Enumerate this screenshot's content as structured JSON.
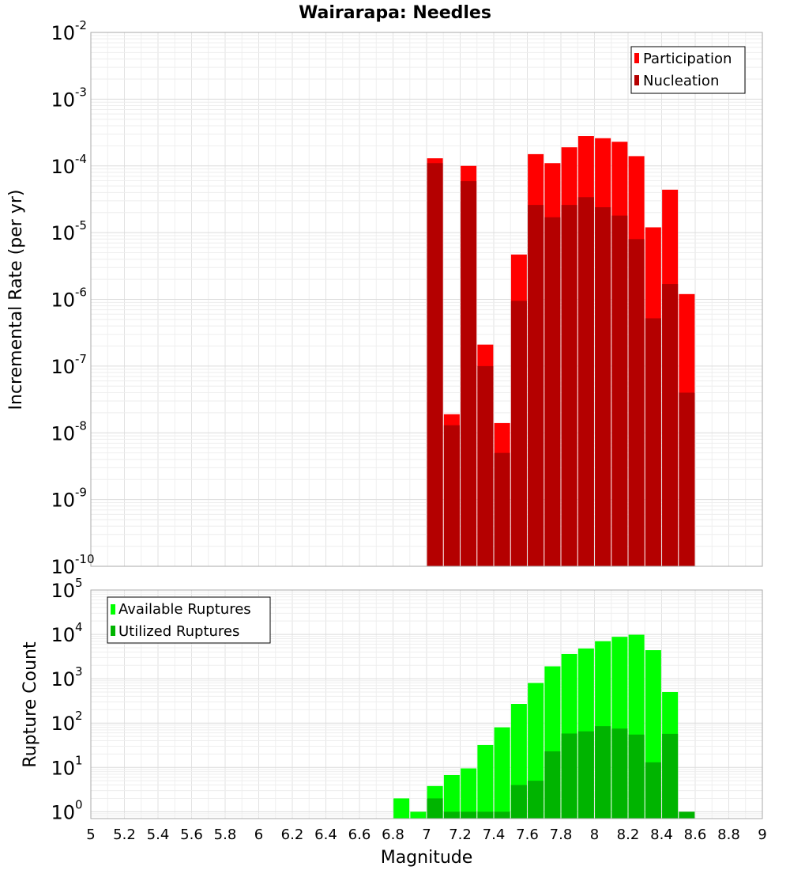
{
  "chart_data": [
    {
      "type": "bar",
      "panel": "top",
      "title": "Wairarapa: Needles",
      "ylabel": "Incremental Rate (per yr)",
      "yscale": "log",
      "ylim": [
        1e-10,
        0.01
      ],
      "y_ticks": [
        {
          "base": "10",
          "exp": "-10"
        },
        {
          "base": "10",
          "exp": "-9"
        },
        {
          "base": "10",
          "exp": "-8"
        },
        {
          "base": "10",
          "exp": "-7"
        },
        {
          "base": "10",
          "exp": "-6"
        },
        {
          "base": "10",
          "exp": "-5"
        },
        {
          "base": "10",
          "exp": "-4"
        },
        {
          "base": "10",
          "exp": "-3"
        },
        {
          "base": "10",
          "exp": "-2"
        }
      ],
      "x": [
        7.05,
        7.15,
        7.25,
        7.35,
        7.45,
        7.55,
        7.65,
        7.75,
        7.85,
        7.95,
        8.05,
        8.15,
        8.25,
        8.35,
        8.45,
        8.55
      ],
      "series": [
        {
          "name": "Participation",
          "color": "#ff0000",
          "values": [
            0.00013,
            1.9e-08,
            0.0001,
            2.1e-07,
            1.4e-08,
            4.7e-06,
            0.00015,
            0.00011,
            0.00019,
            0.00028,
            0.00026,
            0.00023,
            0.00014,
            1.2e-05,
            4.4e-05,
            1.2e-06
          ]
        },
        {
          "name": "Nucleation",
          "color": "#b40000",
          "values": [
            0.00011,
            1.3e-08,
            5.9e-05,
            1e-07,
            5e-09,
            9.5e-07,
            2.6e-05,
            1.7e-05,
            2.6e-05,
            3.4e-05,
            2.4e-05,
            1.8e-05,
            8e-06,
            5.2e-07,
            1.7e-06,
            4e-08
          ]
        }
      ],
      "legend": "top-right",
      "grid": true
    },
    {
      "type": "bar",
      "panel": "bottom",
      "xlabel": "Magnitude",
      "ylabel": "Rupture Count",
      "yscale": "log",
      "ylim": [
        0.7,
        100000.0
      ],
      "y_ticks": [
        {
          "base": "10",
          "exp": "0"
        },
        {
          "base": "10",
          "exp": "1"
        },
        {
          "base": "10",
          "exp": "2"
        },
        {
          "base": "10",
          "exp": "3"
        },
        {
          "base": "10",
          "exp": "4"
        },
        {
          "base": "10",
          "exp": "5"
        }
      ],
      "xlim": [
        5,
        9
      ],
      "x_ticks": [
        "5",
        "5.2",
        "5.4",
        "5.6",
        "5.8",
        "6",
        "6.2",
        "6.4",
        "6.6",
        "6.8",
        "7",
        "7.2",
        "7.4",
        "7.6",
        "7.8",
        "8",
        "8.2",
        "8.4",
        "8.6",
        "8.8",
        "9"
      ],
      "x": [
        6.85,
        6.95,
        7.05,
        7.15,
        7.25,
        7.35,
        7.45,
        7.55,
        7.65,
        7.75,
        7.85,
        7.95,
        8.05,
        8.15,
        8.25,
        8.35,
        8.45,
        8.55
      ],
      "series": [
        {
          "name": "Available Ruptures",
          "color": "#00ff00",
          "values": [
            2,
            1,
            3.8,
            6.7,
            9.5,
            32,
            80,
            270,
            800,
            1900,
            3600,
            4800,
            7000,
            8800,
            9800,
            4400,
            500,
            0
          ]
        },
        {
          "name": "Utilized Ruptures",
          "color": "#00b400",
          "values": [
            0,
            0,
            2,
            1,
            1,
            1,
            1,
            4,
            5,
            23,
            58,
            65,
            85,
            75,
            55,
            13,
            57,
            1
          ]
        }
      ],
      "legend": "top-left",
      "grid": true
    }
  ]
}
